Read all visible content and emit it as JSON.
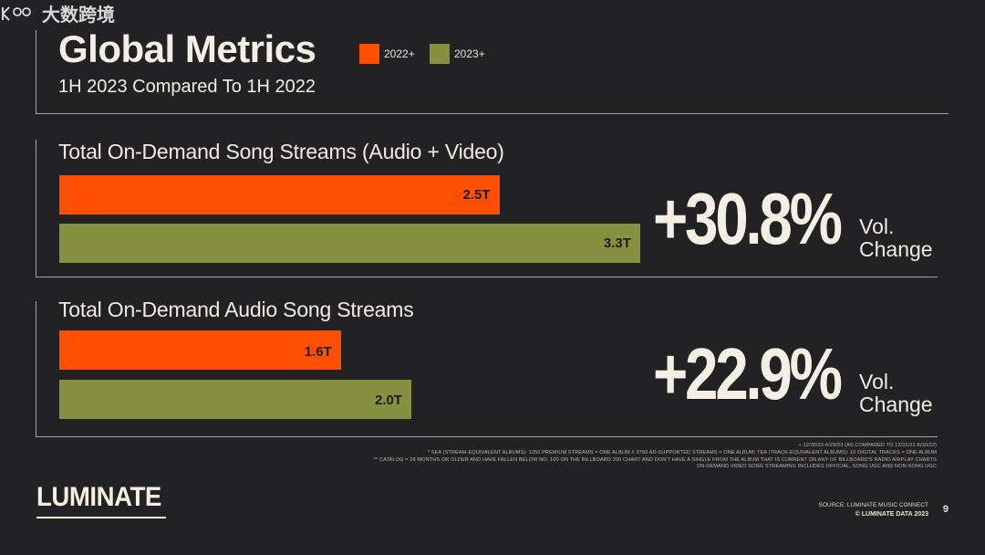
{
  "header": {
    "title": "Global Metrics",
    "subtitle": "1H 2023 Compared To 1H 2022"
  },
  "legend": [
    {
      "label": "2022+",
      "color": "#ff4f00"
    },
    {
      "label": "2023+",
      "color": "#86913f"
    }
  ],
  "chart_data": [
    {
      "type": "bar",
      "orientation": "horizontal",
      "title": "Total On-Demand Song Streams (Audio + Video)",
      "categories": [
        "2022+",
        "2023+"
      ],
      "values": [
        2.5,
        3.3
      ],
      "value_labels": [
        "2.5T",
        "3.3T"
      ],
      "unit": "T",
      "colors": [
        "#ff4f00",
        "#86913f"
      ],
      "change": "+30.8%",
      "change_label": "Vol.\nChange"
    },
    {
      "type": "bar",
      "orientation": "horizontal",
      "title": "Total On-Demand Audio Song Streams",
      "categories": [
        "2022+",
        "2023+"
      ],
      "values": [
        1.6,
        2.0
      ],
      "value_labels": [
        "1.6T",
        "2.0T"
      ],
      "unit": "T",
      "colors": [
        "#ff4f00",
        "#86913f"
      ],
      "change": "+22.9%",
      "change_label": "Vol.\nChange"
    }
  ],
  "footnotes": [
    "+ 12/30/22-6/29/23 (AS COMPARED TO 12/31/21-6/30/22)",
    "* SEA (STREAM-EQUIVALENT ALBUMS): 1250 PREMIUM STREAMS = ONE ALBUM // 3750 AD-SUPPORTED STREAMS = ONE ALBUM; TEA (TRACK-EQUIVALENT ALBUMS): 10 DIGITAL TRACKS = ONE ALBUM",
    "** CATALOG = 18 MONTHS OR OLDER AND HAVE FALLEN BELOW NO. 100 ON THE BILLBOARD 200 CHART AND DON'T HAVE A SINGLE FROM THE ALBUM THAT IS CURRENT ON ANY OF BILLBOARD'S RADIO AIRPLAY CHARTS",
    "ON-DEMAND VIDEO SONG STREAMING INCLUDES OFFICIAL, SONG UGC AND NON-SONG UGC"
  ],
  "footer": {
    "logo": "LUMINATE",
    "source": "SOURCE: LUMINATE MUSIC CONNECT",
    "copyright": "© LUMINATE DATA 2023",
    "page_number": "9"
  },
  "watermark": {
    "text": "大数跨境"
  }
}
